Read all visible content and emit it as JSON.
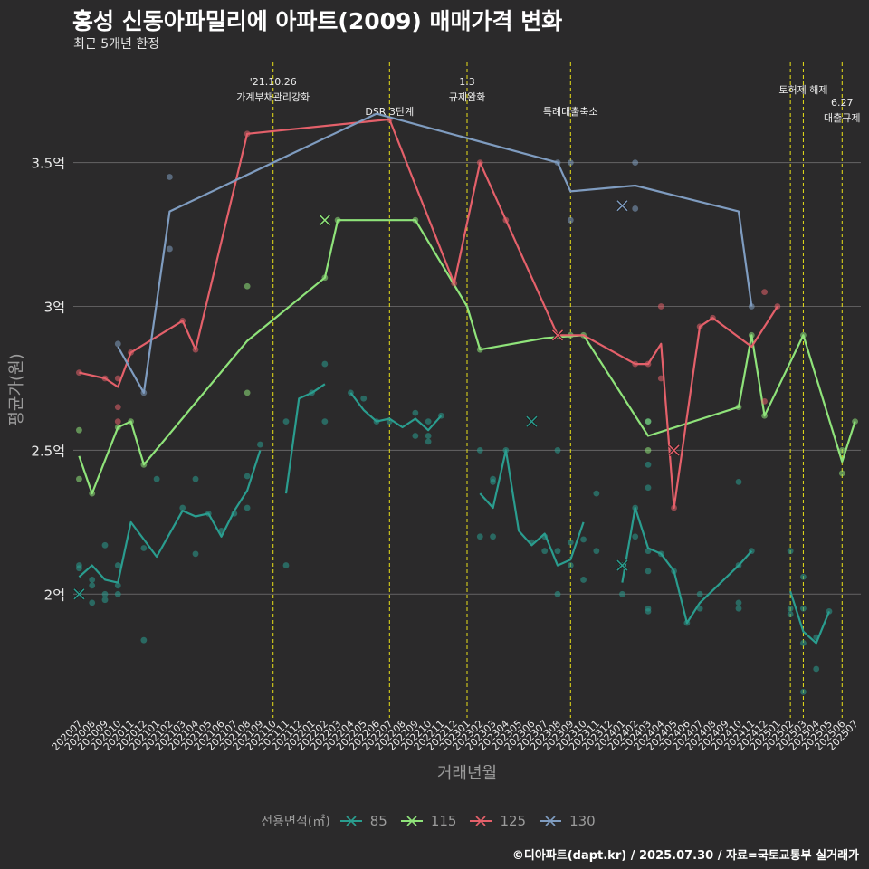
{
  "title": "홍성 신동아파밀리에 아파트(2009) 매매가격 변화",
  "subtitle": "최근 5개년 한정",
  "caption": "©디아파트(dapt.kr) / 2025.07.30 / 자료=국토교통부 실거래가",
  "legend_title": "전용면적(㎡)",
  "chart_data": {
    "type": "line",
    "xlabel": "거래년월",
    "ylabel": "평균가(원)",
    "y_unit": "억원",
    "ylim": [
      1.57,
      3.87
    ],
    "y_ticks": [
      2,
      2.5,
      3,
      3.5
    ],
    "y_tick_labels": [
      "2억",
      "2.5억",
      "3억",
      "3.5억"
    ],
    "categories": [
      "202007",
      "202008",
      "202009",
      "202010",
      "202011",
      "202012",
      "202101",
      "202102",
      "202103",
      "202104",
      "202105",
      "202106",
      "202107",
      "202108",
      "202109",
      "202110",
      "202111",
      "202112",
      "202201",
      "202202",
      "202203",
      "202204",
      "202205",
      "202206",
      "202207",
      "202208",
      "202209",
      "202210",
      "202211",
      "202212",
      "202301",
      "202302",
      "202303",
      "202304",
      "202305",
      "202306",
      "202307",
      "202308",
      "202309",
      "202310",
      "202311",
      "202312",
      "202401",
      "202402",
      "202403",
      "202404",
      "202405",
      "202406",
      "202407",
      "202408",
      "202409",
      "202410",
      "202411",
      "202412",
      "202501",
      "202502",
      "202503",
      "202504",
      "202505",
      "202506",
      "202507"
    ],
    "grid": true,
    "legend_position": "bottom",
    "series": [
      {
        "name": "85",
        "color": "#2a9d8f",
        "segments": [
          [
            [
              "202007",
              2.06
            ],
            [
              "202008",
              2.1
            ],
            [
              "202009",
              2.05
            ],
            [
              "202010",
              2.04
            ],
            [
              "202011",
              2.25
            ],
            [
              "202012",
              2.19
            ],
            [
              "202101",
              2.13
            ],
            [
              "202102",
              2.21
            ],
            [
              "202103",
              2.29
            ],
            [
              "202104",
              2.27
            ],
            [
              "202105",
              2.28
            ],
            [
              "202106",
              2.2
            ],
            [
              "202107",
              2.29
            ],
            [
              "202108",
              2.36
            ],
            [
              "202109",
              2.5
            ]
          ],
          [
            [
              "202111",
              2.35
            ],
            [
              "202112",
              2.68
            ],
            [
              "202201",
              2.7
            ],
            [
              "202202",
              2.73
            ]
          ],
          [
            [
              "202204",
              2.7
            ],
            [
              "202205",
              2.64
            ],
            [
              "202206",
              2.6
            ],
            [
              "202207",
              2.61
            ],
            [
              "202208",
              2.58
            ],
            [
              "202209",
              2.61
            ],
            [
              "202210",
              2.57
            ],
            [
              "202211",
              2.62
            ]
          ],
          [
            [
              "202302",
              2.35
            ],
            [
              "202303",
              2.3
            ],
            [
              "202304",
              2.5
            ],
            [
              "202305",
              2.22
            ],
            [
              "202306",
              2.17
            ],
            [
              "202307",
              2.21
            ],
            [
              "202308",
              2.1
            ],
            [
              "202309",
              2.12
            ],
            [
              "202310",
              2.25
            ]
          ],
          [
            [
              "202401",
              2.04
            ],
            [
              "202402",
              2.3
            ],
            [
              "202403",
              2.16
            ],
            [
              "202404",
              2.14
            ],
            [
              "202405",
              2.08
            ],
            [
              "202406",
              1.9
            ],
            [
              "202407",
              1.97
            ],
            [
              "202410",
              2.1
            ],
            [
              "202411",
              2.15
            ]
          ],
          [
            [
              "202502",
              2.01
            ],
            [
              "202503",
              1.87
            ],
            [
              "202504",
              1.83
            ],
            [
              "202505",
              1.94
            ]
          ]
        ],
        "points": [
          [
            "202007",
            2.1
          ],
          [
            "202007",
            2.09
          ],
          [
            "202007",
            2.0
          ],
          [
            "202008",
            1.97
          ],
          [
            "202008",
            2.05
          ],
          [
            "202008",
            2.03
          ],
          [
            "202009",
            2.17
          ],
          [
            "202009",
            1.98
          ],
          [
            "202009",
            2.0
          ],
          [
            "202010",
            2.1
          ],
          [
            "202010",
            2.03
          ],
          [
            "202010",
            2.0
          ],
          [
            "202012",
            1.84
          ],
          [
            "202012",
            2.16
          ],
          [
            "202101",
            2.4
          ],
          [
            "202103",
            2.3
          ],
          [
            "202104",
            2.14
          ],
          [
            "202104",
            2.4
          ],
          [
            "202105",
            2.28
          ],
          [
            "202106",
            2.22
          ],
          [
            "202107",
            2.28
          ],
          [
            "202108",
            2.41
          ],
          [
            "202108",
            2.3
          ],
          [
            "202109",
            2.52
          ],
          [
            "202111",
            2.1
          ],
          [
            "202111",
            2.6
          ],
          [
            "202201",
            2.7
          ],
          [
            "202202",
            2.8
          ],
          [
            "202202",
            2.6
          ],
          [
            "202204",
            2.7
          ],
          [
            "202205",
            2.68
          ],
          [
            "202206",
            2.6
          ],
          [
            "202207",
            2.6
          ],
          [
            "202209",
            2.63
          ],
          [
            "202209",
            2.55
          ],
          [
            "202210",
            2.55
          ],
          [
            "202210",
            2.6
          ],
          [
            "202210",
            2.53
          ],
          [
            "202211",
            2.62
          ],
          [
            "202302",
            2.5
          ],
          [
            "202302",
            2.2
          ],
          [
            "202303",
            2.4
          ],
          [
            "202303",
            2.39
          ],
          [
            "202303",
            2.2
          ],
          [
            "202304",
            2.5
          ],
          [
            "202306",
            2.18
          ],
          [
            "202307",
            2.15
          ],
          [
            "202307",
            2.2
          ],
          [
            "202308",
            2.5
          ],
          [
            "202308",
            2.15
          ],
          [
            "202308",
            2.0
          ],
          [
            "202309",
            2.1
          ],
          [
            "202309",
            2.18
          ],
          [
            "202310",
            2.05
          ],
          [
            "202310",
            2.19
          ],
          [
            "202311",
            2.35
          ],
          [
            "202311",
            2.15
          ],
          [
            "202401",
            2.1
          ],
          [
            "202401",
            2.0
          ],
          [
            "202402",
            2.3
          ],
          [
            "202402",
            2.2
          ],
          [
            "202403",
            2.6
          ],
          [
            "202403",
            2.45
          ],
          [
            "202403",
            2.37
          ],
          [
            "202403",
            2.15
          ],
          [
            "202403",
            2.08
          ],
          [
            "202403",
            1.95
          ],
          [
            "202403",
            1.94
          ],
          [
            "202404",
            2.14
          ],
          [
            "202405",
            2.08
          ],
          [
            "202406",
            1.9
          ],
          [
            "202407",
            2.0
          ],
          [
            "202407",
            1.95
          ],
          [
            "202410",
            2.39
          ],
          [
            "202410",
            2.1
          ],
          [
            "202410",
            1.97
          ],
          [
            "202410",
            1.95
          ],
          [
            "202411",
            2.15
          ],
          [
            "202502",
            2.15
          ],
          [
            "202502",
            1.95
          ],
          [
            "202502",
            1.93
          ],
          [
            "202503",
            2.06
          ],
          [
            "202503",
            1.95
          ],
          [
            "202503",
            1.83
          ],
          [
            "202503",
            1.66
          ],
          [
            "202504",
            1.85
          ],
          [
            "202504",
            1.74
          ],
          [
            "202505",
            1.94
          ]
        ],
        "crosses": [
          [
            "202007",
            2.0
          ],
          [
            "202306",
            2.6
          ],
          [
            "202401",
            2.1
          ]
        ]
      },
      {
        "name": "115",
        "color": "#8fe37a",
        "segments": [
          [
            [
              "202007",
              2.48
            ],
            [
              "202008",
              2.35
            ],
            [
              "202010",
              2.58
            ],
            [
              "202011",
              2.6
            ],
            [
              "202012",
              2.45
            ],
            [
              "202108",
              2.88
            ],
            [
              "202202",
              3.1
            ],
            [
              "202203",
              3.3
            ],
            [
              "202207",
              3.3
            ],
            [
              "202209",
              3.3
            ],
            [
              "202301",
              3.0
            ],
            [
              "202302",
              2.85
            ],
            [
              "202307",
              2.89
            ],
            [
              "202310",
              2.9
            ],
            [
              "202403",
              2.55
            ],
            [
              "202410",
              2.65
            ],
            [
              "202411",
              2.9
            ],
            [
              "202412",
              2.62
            ],
            [
              "202503",
              2.9
            ],
            [
              "202506",
              2.46
            ],
            [
              "202507",
              2.6
            ]
          ]
        ],
        "points": [
          [
            "202007",
            2.57
          ],
          [
            "202007",
            2.4
          ],
          [
            "202008",
            2.35
          ],
          [
            "202010",
            2.58
          ],
          [
            "202011",
            2.6
          ],
          [
            "202012",
            2.45
          ],
          [
            "202108",
            3.07
          ],
          [
            "202108",
            2.7
          ],
          [
            "202202",
            3.1
          ],
          [
            "202203",
            3.3
          ],
          [
            "202209",
            3.3
          ],
          [
            "202302",
            2.85
          ],
          [
            "202309",
            2.9
          ],
          [
            "202310",
            2.9
          ],
          [
            "202403",
            2.6
          ],
          [
            "202403",
            2.5
          ],
          [
            "202410",
            2.65
          ],
          [
            "202411",
            2.9
          ],
          [
            "202412",
            2.62
          ],
          [
            "202503",
            2.9
          ],
          [
            "202506",
            2.42
          ],
          [
            "202506",
            2.5
          ],
          [
            "202507",
            2.6
          ]
        ],
        "crosses": [
          [
            "202202",
            3.3
          ]
        ]
      },
      {
        "name": "125",
        "color": "#e4606a",
        "segments": [
          [
            [
              "202007",
              2.77
            ],
            [
              "202009",
              2.75
            ],
            [
              "202010",
              2.72
            ],
            [
              "202011",
              2.84
            ],
            [
              "202103",
              2.95
            ],
            [
              "202104",
              2.85
            ],
            [
              "202108",
              3.6
            ],
            [
              "202207",
              3.65
            ],
            [
              "202212",
              3.08
            ],
            [
              "202302",
              3.5
            ],
            [
              "202304",
              3.3
            ],
            [
              "202308",
              2.9
            ],
            [
              "202310",
              2.9
            ],
            [
              "202402",
              2.8
            ],
            [
              "202403",
              2.8
            ],
            [
              "202404",
              2.87
            ],
            [
              "202405",
              2.3
            ],
            [
              "202407",
              2.93
            ],
            [
              "202408",
              2.96
            ],
            [
              "202411",
              2.86
            ],
            [
              "202501",
              3.0
            ]
          ]
        ],
        "points": [
          [
            "202007",
            2.77
          ],
          [
            "202009",
            2.75
          ],
          [
            "202010",
            2.75
          ],
          [
            "202010",
            2.65
          ],
          [
            "202010",
            2.6
          ],
          [
            "202011",
            2.84
          ],
          [
            "202103",
            2.95
          ],
          [
            "202104",
            2.85
          ],
          [
            "202108",
            3.6
          ],
          [
            "202207",
            3.65
          ],
          [
            "202212",
            3.08
          ],
          [
            "202302",
            3.5
          ],
          [
            "202304",
            3.3
          ],
          [
            "202402",
            2.8
          ],
          [
            "202403",
            2.8
          ],
          [
            "202404",
            3.0
          ],
          [
            "202404",
            2.75
          ],
          [
            "202405",
            2.3
          ],
          [
            "202407",
            2.93
          ],
          [
            "202408",
            2.96
          ],
          [
            "202412",
            3.05
          ],
          [
            "202412",
            2.67
          ],
          [
            "202501",
            3.0
          ]
        ],
        "crosses": [
          [
            "202308",
            2.9
          ],
          [
            "202405",
            2.5
          ]
        ]
      },
      {
        "name": "130",
        "color": "#7f9cc0",
        "segments": [
          [
            [
              "202010",
              2.86
            ],
            [
              "202012",
              2.7
            ],
            [
              "202102",
              3.33
            ],
            [
              "202206",
              3.67
            ],
            [
              "202308",
              3.5
            ],
            [
              "202309",
              3.4
            ],
            [
              "202402",
              3.42
            ],
            [
              "202410",
              3.33
            ],
            [
              "202411",
              3.0
            ]
          ]
        ],
        "points": [
          [
            "202010",
            2.87
          ],
          [
            "202012",
            2.7
          ],
          [
            "202102",
            3.45
          ],
          [
            "202102",
            3.2
          ],
          [
            "202308",
            3.5
          ],
          [
            "202309",
            3.5
          ],
          [
            "202309",
            3.3
          ],
          [
            "202402",
            3.5
          ],
          [
            "202402",
            3.34
          ],
          [
            "202411",
            3.0
          ]
        ],
        "crosses": [
          [
            "202401",
            3.35
          ]
        ]
      }
    ],
    "annotations": [
      {
        "x": "202110",
        "lines": [
          "'21.10.26",
          "가계부채관리강화"
        ]
      },
      {
        "x": "202207",
        "lines": [
          "DSR 3단계"
        ]
      },
      {
        "x": "202301",
        "lines": [
          "1.3",
          "규제완화"
        ]
      },
      {
        "x": "202309",
        "lines": [
          "특례대출축소"
        ]
      },
      {
        "x": "202502",
        "lines": [
          ""
        ]
      },
      {
        "x": "202503",
        "lines": [
          "토허제 해제"
        ]
      },
      {
        "x": "202506",
        "lines": [
          "6.27",
          "대출규제"
        ]
      }
    ]
  }
}
